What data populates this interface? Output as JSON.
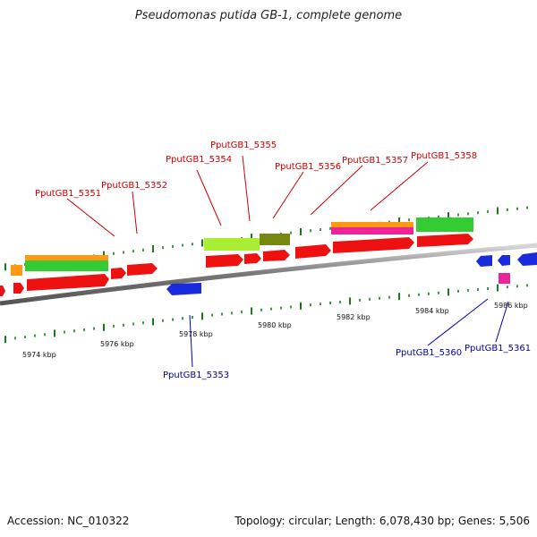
{
  "header": {
    "title": "Pseudomonas putida GB-1, complete genome"
  },
  "footer": {
    "accession": "Accession: NC_010322",
    "summary": "Topology: circular; Length: 6,078,430 bp; Genes: 5,506"
  },
  "axis": {
    "ticks": [
      {
        "label": "5974 kbp"
      },
      {
        "label": "5976 kbp"
      },
      {
        "label": "5978 kbp"
      },
      {
        "label": "5980 kbp"
      },
      {
        "label": "5982 kbp"
      },
      {
        "label": "5984 kbp"
      },
      {
        "label": "5986 kbp"
      }
    ]
  },
  "colors": {
    "backbone": "#8a8a8a",
    "forward_label": "#cc0000",
    "reverse_label": "#0000aa",
    "cds": "#ee1111",
    "reverse_cds": "#1a2bdd",
    "orange": "#ff9911",
    "green": "#33cc33",
    "lime": "#aaee33",
    "olive": "#778811",
    "magenta": "#ee2299",
    "tick": "#1a7a1a"
  },
  "gene_labels": {
    "forward": [
      "PputGB1_5351",
      "PputGB1_5352",
      "PputGB1_5354",
      "PputGB1_5355",
      "PputGB1_5356",
      "PputGB1_5357",
      "PputGB1_5358"
    ],
    "reverse": [
      "PputGB1_5353",
      "PputGB1_5360",
      "PputGB1_5361"
    ]
  }
}
